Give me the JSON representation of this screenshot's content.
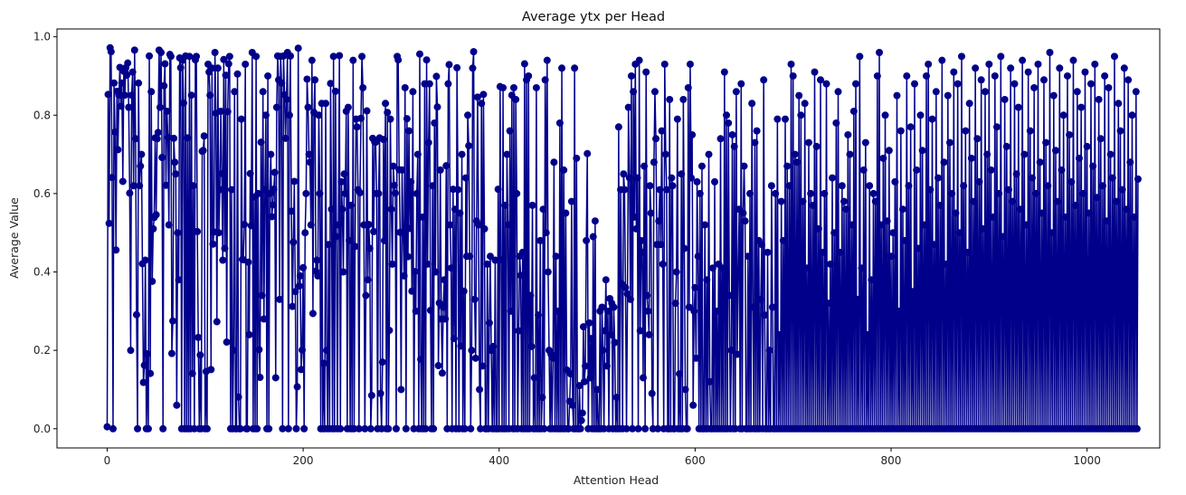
{
  "chart_data": {
    "type": "line",
    "title": "Average ytx per Head",
    "xlabel": "Attention Head",
    "ylabel": "Average Value",
    "xlim": [
      -51.2,
      1074.2
    ],
    "ylim": [
      -0.049,
      1.02
    ],
    "xticks": [
      0,
      200,
      400,
      600,
      800,
      1000
    ],
    "yticks": [
      0.0,
      0.2,
      0.4,
      0.6,
      0.8,
      1.0
    ],
    "grid": false,
    "legend": "none",
    "color": "#00008b",
    "series": [
      {
        "marker": "circle",
        "x_start": 0,
        "x_step": 1,
        "values": [
          0.005,
          0.853,
          0.524,
          0.972,
          0.962,
          0.641,
          0.0,
          0.882,
          0.757,
          0.456,
          0.861,
          0.712,
          0.851,
          0.922,
          0.823,
          0.882,
          0.631,
          0.912,
          0.851,
          0.921,
          0.902,
          0.933,
          0.82,
          0.601,
          0.2,
          0.851,
          0.91,
          0.62,
          0.966,
          0.74,
          0.291,
          0.0,
          0.882,
          0.62,
          0.67,
          0.7,
          0.421,
          0.118,
          0.162,
          0.43,
          0.0,
          0.191,
          0.0,
          0.951,
          0.141,
          0.86,
          0.376,
          0.51,
          0.539,
          0.742,
          0.546,
          0.74,
          0.756,
          0.966,
          0.82,
          0.96,
          0.692,
          0.0,
          0.875,
          0.931,
          0.621,
          0.81,
          0.743,
          0.52,
          0.955,
          0.95,
          0.192,
          0.275,
          0.741,
          0.68,
          0.65,
          0.06,
          0.5,
          0.38,
          0.946,
          0.921,
          0.0,
          0.94,
          0.831,
          0.0,
          0.951,
          0.0,
          0.742,
          0.0,
          0.95,
          0.0,
          0.851,
          0.141,
          0.62,
          0.0,
          0.941,
          0.95,
          0.503,
          0.233,
          0.0,
          0.188,
          0.0,
          0.708,
          0.71,
          0.747,
          0.0,
          0.146,
          0.0,
          0.93,
          0.91,
          0.851,
          0.151,
          0.92,
          0.471,
          0.502,
          0.96,
          0.805,
          0.273,
          0.92,
          0.5,
          0.61,
          0.81,
          0.651,
          0.43,
          0.942,
          0.46,
          0.902,
          0.221,
          0.809,
          0.931,
          0.95,
          0.0,
          0.61,
          0.0,
          0.2,
          0.86,
          0.0,
          0.0,
          0.905,
          0.081,
          0.0,
          0.0,
          0.79,
          0.432,
          0.431,
          0.521,
          0.93,
          0.0,
          0.0,
          0.425,
          0.24,
          0.651,
          0.518,
          0.96,
          0.0,
          0.591,
          0.0,
          0.95,
          0.0,
          0.6,
          0.202,
          0.131,
          0.731,
          0.34,
          0.86,
          0.28,
          0.61,
          0.8,
          0.0,
          0.9,
          0.0,
          0.6,
          0.7,
          0.541,
          0.571,
          0.611,
          0.654,
          0.13,
          0.82,
          0.951,
          0.89,
          0.33,
          0.95,
          0.882,
          0.0,
          0.951,
          0.852,
          0.741,
          0.84,
          0.96,
          0.0,
          0.8,
          0.951,
          0.555,
          0.312,
          0.476,
          0.631,
          0.35,
          0.0,
          0.107,
          0.971,
          0.364,
          0.39,
          0.151,
          0.201,
          0.411,
          0.0,
          0.5,
          0.6,
          0.892,
          0.82,
          0.7,
          0.68,
          0.52,
          0.94,
          0.294,
          0.807,
          0.89,
          0.402,
          0.43,
          0.39,
          0.8,
          0.6,
          0.0,
          0.83,
          0.0,
          0.167,
          0.0,
          0.83,
          0.2,
          0.0,
          0.47,
          0.0,
          0.881,
          0.56,
          0.0,
          0.95,
          0.0,
          0.861,
          0.49,
          0.0,
          0.52,
          0.952,
          0.0,
          0.63,
          0.56,
          0.4,
          0.65,
          0.6,
          0.81,
          0.0,
          0.82,
          0.48,
          0.0,
          0.57,
          0.0,
          0.94,
          0.0,
          0.465,
          0.79,
          0.77,
          0.61,
          0.0,
          0.602,
          0.792,
          0.95,
          0.87,
          0.52,
          0.0,
          0.34,
          0.811,
          0.38,
          0.521,
          0.46,
          0.0,
          0.085,
          0.741,
          0.503,
          0.732,
          0.731,
          0.6,
          0.0,
          0.6,
          0.742,
          0.09,
          0.0,
          0.17,
          0.738,
          0.48,
          0.83,
          0.0,
          0.807,
          0.0,
          0.251,
          0.79,
          0.56,
          0.42,
          0.67,
          0.621,
          0.601,
          0.0,
          0.95,
          0.941,
          0.661,
          0.501,
          0.1,
          0.66,
          0.5,
          0.39,
          0.87,
          0.0,
          0.791,
          0.439,
          0.76,
          0.511,
          0.63,
          0.351,
          0.86,
          0.0,
          0.401,
          0.3,
          0.6,
          0.7,
          0.0,
          0.956,
          0.177,
          0.0,
          0.54,
          0.0,
          0.88,
          0.0,
          0.941,
          0.42,
          0.73,
          0.88,
          0.302,
          0.0,
          0.62,
          0.0,
          0.78,
          0.4,
          0.899,
          0.821,
          0.161,
          0.321,
          0.66,
          0.28,
          0.142,
          0.31,
          0.38,
          0.28,
          0.671,
          0.0,
          0.88,
          0.929,
          0.52,
          0.41,
          0.0,
          0.611,
          0.23,
          0.56,
          0.0,
          0.921,
          0.61,
          0.0,
          0.55,
          0.211,
          0.7,
          0.0,
          0.351,
          0.0,
          0.64,
          0.44,
          0.8,
          0.722,
          0.44,
          0.0,
          0.2,
          0.92,
          0.962,
          0.33,
          0.18,
          0.53,
          0.846,
          0.52,
          0.1,
          0.0,
          0.83,
          0.16,
          0.853,
          0.51,
          0.0,
          0.0,
          0.42,
          0.0,
          0.27,
          0.44,
          0.2,
          0.0,
          0.21,
          0.0,
          0.43,
          0.0,
          0.0,
          0.611,
          0.0,
          0.873,
          0.431,
          0.0,
          0.87,
          0.0,
          0.57,
          0.0,
          0.7,
          0.52,
          0.0,
          0.76,
          0.3,
          0.851,
          0.0,
          0.87,
          0.0,
          0.84,
          0.6,
          0.0,
          0.25,
          0.44,
          0.391,
          0.0,
          0.45,
          0.0,
          0.931,
          0.0,
          0.89,
          0.0,
          0.9,
          0.0,
          0.34,
          0.21,
          0.57,
          0.0,
          0.13,
          0.0,
          0.87,
          0.0,
          0.29,
          0.0,
          0.48,
          0.0,
          0.08,
          0.56,
          0.0,
          0.89,
          0.5,
          0.94,
          0.4,
          0.2,
          0.0,
          0.19,
          0.0,
          0.18,
          0.68,
          0.0,
          0.44,
          0.0,
          0.3,
          0.0,
          0.78,
          0.0,
          0.92,
          0.0,
          0.66,
          0.0,
          0.55,
          0.15,
          0.0,
          0.0,
          0.07,
          0.14,
          0.58,
          0.06,
          0.0,
          0.92,
          0.0,
          0.69,
          0.0,
          0.0,
          0.11,
          0.0,
          0.021,
          0.04,
          0.26,
          0.12,
          0.16,
          0.48,
          0.702,
          0.0,
          0.27,
          0.13,
          0.23,
          0.0,
          0.49,
          0.0,
          0.53,
          0.0,
          0.1,
          0.0,
          0.0,
          0.3,
          0.0,
          0.31,
          0.2,
          0.0,
          0.25,
          0.38,
          0.16,
          0.3,
          0.0,
          0.332,
          0.24,
          0.32,
          0.0,
          0.31,
          0.22,
          0.0,
          0.08,
          0.0,
          0.77,
          0.0,
          0.61,
          0.37,
          0.0,
          0.65,
          0.61,
          0.36,
          0.0,
          0.344,
          0.82,
          0.64,
          0.33,
          0.9,
          0.0,
          0.86,
          0.54,
          0.93,
          0.51,
          0.64,
          0.0,
          0.94,
          0.25,
          0.48,
          0.45,
          0.13,
          0.67,
          0.0,
          0.91,
          0.34,
          0.3,
          0.24,
          0.62,
          0.55,
          0.09,
          0.0,
          0.68,
          0.86,
          0.74,
          0.47,
          0.0,
          0.53,
          0.61,
          0.47,
          0.76,
          0.42,
          0.0,
          0.93,
          0.7,
          0.61,
          0.0,
          0.0,
          0.84,
          0.0,
          0.64,
          0.62,
          0.0,
          0.0,
          0.32,
          0.4,
          0.79,
          0.0,
          0.14,
          0.0,
          0.65,
          0.0,
          0.84,
          0.46,
          0.1,
          0.0,
          0.0,
          0.87,
          0.31,
          0.93,
          0.64,
          0.75,
          0.06,
          0.3,
          0.36,
          0.18,
          0.63,
          0.44,
          0.0,
          0.6,
          0.0,
          0.67,
          0.0,
          0.0,
          0.52,
          0.0,
          0.38,
          0.0,
          0.7,
          0.12,
          0.0,
          0.0,
          0.41,
          0.0,
          0.63,
          0.0,
          0.3,
          0.0,
          0.42,
          0.0,
          0.74,
          0.0,
          0.41,
          0.0,
          0.91,
          0.0,
          0.8,
          0.0,
          0.78,
          0.34,
          0.0,
          0.2,
          0.75,
          0.0,
          0.72,
          0.0,
          0.86,
          0.19,
          0.4,
          0.56,
          0.0,
          0.88,
          0.0,
          0.55,
          0.67,
          0.53,
          0.0,
          0.0,
          0.44,
          0.0,
          0.6,
          0.0,
          0.83,
          0.31,
          0.0,
          0.73,
          0.0,
          0.76,
          0.0,
          0.48,
          0.0,
          0.33,
          0.47,
          0.0,
          0.89,
          0.29,
          0.0,
          0.0,
          0.45,
          0.0,
          0.2,
          0.0,
          0.62,
          0.31,
          0.0,
          0.0,
          0.6,
          0.0,
          0.79,
          0.0,
          0.24,
          0.0,
          0.58,
          0.0,
          0.48,
          0.0,
          0.79,
          0.0,
          0.67,
          0.0,
          0.62,
          0.0,
          0.93,
          0.0,
          0.9,
          0.0,
          0.7,
          0.0,
          0.68,
          0.0,
          0.85,
          0.0,
          0.8,
          0.0,
          0.58,
          0.0,
          0.83,
          0.0,
          0.41,
          0.0,
          0.73,
          0.0,
          0.6,
          0.0,
          0.57,
          0.0,
          0.91,
          0.0,
          0.72,
          0.0,
          0.51,
          0.0,
          0.89,
          0.0,
          0.45,
          0.0,
          0.6,
          0.0,
          0.88,
          0.0,
          0.32,
          0.0,
          0.42,
          0.0,
          0.64,
          0.0,
          0.5,
          0.0,
          0.78,
          0.0,
          0.86,
          0.0,
          0.45,
          0.0,
          0.62,
          0.0,
          0.58,
          0.0,
          0.56,
          0.0,
          0.75,
          0.0,
          0.7,
          0.0,
          0.52,
          0.0,
          0.81,
          0.0,
          0.88,
          0.0,
          0.33,
          0.0,
          0.95,
          0.0,
          0.41,
          0.0,
          0.66,
          0.0,
          0.73,
          0.0,
          0.24,
          0.0,
          0.62,
          0.0,
          0.38,
          0.0,
          0.6,
          0.0,
          0.58,
          0.0,
          0.9,
          0.0,
          0.96,
          0.0,
          0.52,
          0.0,
          0.69,
          0.0,
          0.8,
          0.0,
          0.53,
          0.0,
          0.71,
          0.0,
          0.44,
          0.0,
          0.5,
          0.0,
          0.63,
          0.0,
          0.85,
          0.0,
          0.3,
          0.0,
          0.76,
          0.0,
          0.56,
          0.0,
          0.48,
          0.0,
          0.9,
          0.0,
          0.62,
          0.0,
          0.77,
          0.0,
          0.35,
          0.0,
          0.88,
          0.0,
          0.66,
          0.0,
          0.46,
          0.0,
          0.8,
          0.0,
          0.71,
          0.0,
          0.52,
          0.0,
          0.9,
          0.0,
          0.93,
          0.0,
          0.61,
          0.0,
          0.79,
          0.0,
          0.47,
          0.0,
          0.86,
          0.0,
          0.64,
          0.0,
          0.57,
          0.0,
          0.94,
          0.0,
          0.68,
          0.0,
          0.42,
          0.0,
          0.85,
          0.0,
          0.73,
          0.0,
          0.6,
          0.0,
          0.91,
          0.0,
          0.55,
          0.0,
          0.88,
          0.0,
          0.5,
          0.0,
          0.95,
          0.0,
          0.62,
          0.0,
          0.76,
          0.0,
          0.45,
          0.0,
          0.83,
          0.0,
          0.69,
          0.0,
          0.58,
          0.0,
          0.92,
          0.0,
          0.74,
          0.0,
          0.63,
          0.0,
          0.89,
          0.0,
          0.51,
          0.0,
          0.86,
          0.0,
          0.7,
          0.0,
          0.93,
          0.0,
          0.66,
          0.0,
          0.54,
          0.0,
          0.9,
          0.0,
          0.77,
          0.0,
          0.6,
          0.0,
          0.95,
          0.0,
          0.49,
          0.0,
          0.84,
          0.0,
          0.72,
          0.0,
          0.61,
          0.0,
          0.92,
          0.0,
          0.58,
          0.0,
          0.88,
          0.0,
          0.65,
          0.0,
          0.82,
          0.0,
          0.56,
          0.0,
          0.94,
          0.0,
          0.7,
          0.0,
          0.52,
          0.0,
          0.91,
          0.0,
          0.76,
          0.0,
          0.64,
          0.0,
          0.87,
          0.0,
          0.6,
          0.0,
          0.93,
          0.0,
          0.68,
          0.0,
          0.55,
          0.0,
          0.89,
          0.0,
          0.73,
          0.0,
          0.62,
          0.0,
          0.96,
          0.0,
          0.5,
          0.0,
          0.85,
          0.0,
          0.71,
          0.0,
          0.58,
          0.0,
          0.92,
          0.0,
          0.66,
          0.0,
          0.8,
          0.0,
          0.54,
          0.0,
          0.9,
          0.0,
          0.75,
          0.0,
          0.63,
          0.0,
          0.94,
          0.0,
          0.57,
          0.0,
          0.86,
          0.0,
          0.69,
          0.0,
          0.82,
          0.0,
          0.6,
          0.0,
          0.91,
          0.0,
          0.72,
          0.0,
          0.55,
          0.0,
          0.88,
          0.0,
          0.67,
          0.0,
          0.93,
          0.0,
          0.59,
          0.0,
          0.84,
          0.0,
          0.74,
          0.0,
          0.62,
          0.0,
          0.9,
          0.0,
          0.53,
          0.0,
          0.87,
          0.0,
          0.7,
          0.0,
          0.64,
          0.0,
          0.95,
          0.0,
          0.58,
          0.0,
          0.83,
          0.0,
          0.76,
          0.0,
          0.61,
          0.0,
          0.92,
          0.0,
          0.56,
          0.0,
          0.89,
          0.0,
          0.68,
          0.0,
          0.8,
          0.0,
          0.54,
          0.0,
          0.86,
          0.0,
          0.637
        ]
      }
    ]
  }
}
